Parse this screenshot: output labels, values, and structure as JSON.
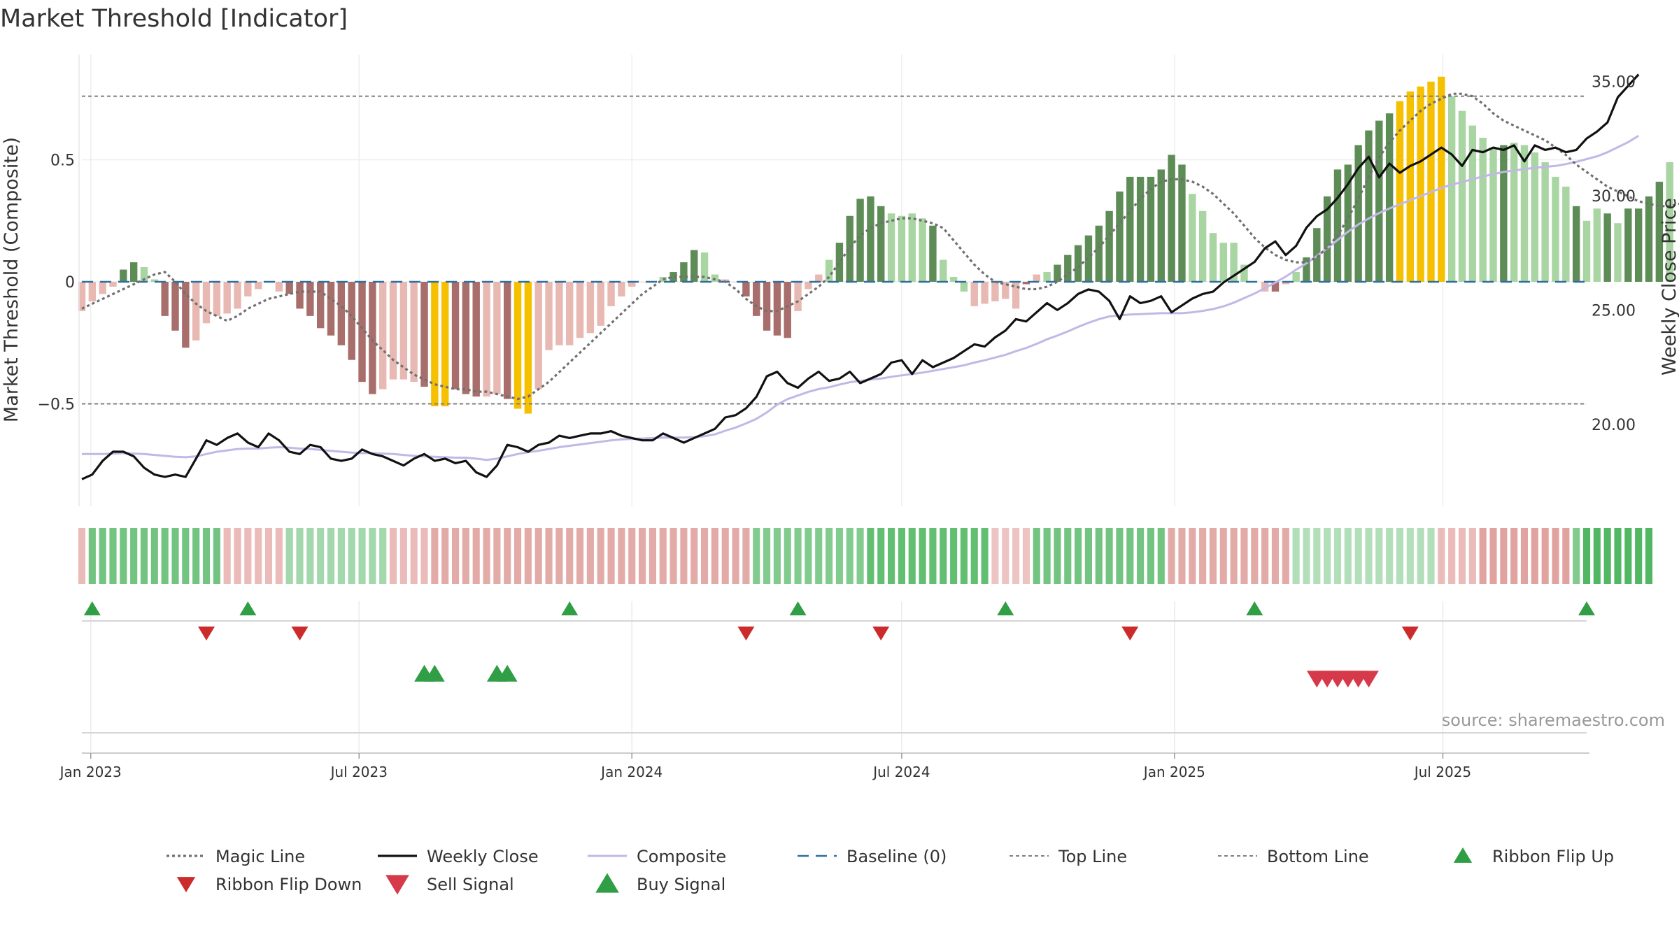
{
  "chart_data": {
    "type": "bar",
    "title": "Market Threshold [Indicator]",
    "ylabel_left": "Market Threshold (Composite)",
    "ylabel_right": "Weekly Close Price",
    "ylim_left": [
      -0.9,
      0.93
    ],
    "ylim_right": [
      16.3,
      36.4
    ],
    "yticks_left": [
      {
        "v": 0.5,
        "label": "0.5"
      },
      {
        "v": 0,
        "label": "0"
      },
      {
        "v": -0.5,
        "label": "−0.5"
      }
    ],
    "yticks_right": [
      {
        "v": 35,
        "label": "35.00"
      },
      {
        "v": 30,
        "label": "30.00"
      },
      {
        "v": 25,
        "label": "25.00"
      },
      {
        "v": 20,
        "label": "20.00"
      }
    ],
    "x_start": "2022-12-26",
    "x_end": "2025-10-06",
    "xticks": [
      {
        "date": "2023-01-01",
        "label": "Jan 2023"
      },
      {
        "date": "2023-07-01",
        "label": "Jul 2023"
      },
      {
        "date": "2024-01-01",
        "label": "Jan 2024"
      },
      {
        "date": "2024-07-01",
        "label": "Jul 2024"
      },
      {
        "date": "2025-01-01",
        "label": "Jan 2025"
      },
      {
        "date": "2025-07-01",
        "label": "Jul 2025"
      }
    ],
    "top_line": 0.76,
    "bottom_line": -0.5,
    "baseline": 0,
    "composite": [
      -0.12,
      -0.08,
      -0.05,
      -0.02,
      0.05,
      0.08,
      0.06,
      0.01,
      -0.14,
      -0.2,
      -0.27,
      -0.24,
      -0.17,
      -0.14,
      -0.13,
      -0.11,
      -0.06,
      -0.03,
      0.0,
      -0.04,
      -0.05,
      -0.11,
      -0.14,
      -0.19,
      -0.22,
      -0.26,
      -0.32,
      -0.41,
      -0.46,
      -0.44,
      -0.4,
      -0.4,
      -0.41,
      -0.43,
      -0.51,
      -0.51,
      -0.44,
      -0.46,
      -0.47,
      -0.47,
      -0.46,
      -0.48,
      -0.52,
      -0.54,
      -0.44,
      -0.28,
      -0.26,
      -0.26,
      -0.23,
      -0.21,
      -0.18,
      -0.1,
      -0.06,
      -0.02,
      0.0,
      0.0,
      0.02,
      0.04,
      0.08,
      0.13,
      0.12,
      0.03,
      0.01,
      0.0,
      -0.06,
      -0.14,
      -0.2,
      -0.22,
      -0.23,
      -0.12,
      -0.03,
      0.03,
      0.09,
      0.16,
      0.27,
      0.34,
      0.35,
      0.31,
      0.28,
      0.27,
      0.28,
      0.26,
      0.23,
      0.09,
      0.02,
      -0.04,
      -0.1,
      -0.09,
      -0.08,
      -0.07,
      -0.11,
      -0.01,
      0.03,
      0.04,
      0.07,
      0.11,
      0.15,
      0.19,
      0.23,
      0.29,
      0.37,
      0.43,
      0.43,
      0.43,
      0.46,
      0.52,
      0.48,
      0.36,
      0.29,
      0.2,
      0.16,
      0.16,
      0.07,
      0.0,
      -0.04,
      -0.04,
      -0.01,
      0.04,
      0.1,
      0.22,
      0.35,
      0.46,
      0.48,
      0.56,
      0.62,
      0.66,
      0.69,
      0.74,
      0.78,
      0.8,
      0.82,
      0.84,
      0.76,
      0.7,
      0.64,
      0.59,
      0.55,
      0.56,
      0.57,
      0.56,
      0.53,
      0.49,
      0.43,
      0.39,
      0.31,
      0.25,
      0.3,
      0.28,
      0.24,
      0.3,
      0.3,
      0.35,
      0.41,
      0.49
    ],
    "bar_states": [
      "lr",
      "lr",
      "lr",
      "lr",
      "dg",
      "dg",
      "lg",
      "lg",
      "dr",
      "dr",
      "dr",
      "lr",
      "lr",
      "lr",
      "lr",
      "lr",
      "lr",
      "lr",
      "lr",
      "lr",
      "dr",
      "dr",
      "dr",
      "dr",
      "dr",
      "dr",
      "dr",
      "dr",
      "dr",
      "lr",
      "lr",
      "lr",
      "lr",
      "dr",
      "y",
      "y",
      "dr",
      "dr",
      "dr",
      "lr",
      "lr",
      "dr",
      "y",
      "y",
      "lr",
      "lr",
      "lr",
      "lr",
      "lr",
      "lr",
      "lr",
      "lr",
      "lr",
      "lr",
      "lr",
      "lr",
      "lg",
      "dg",
      "dg",
      "dg",
      "lg",
      "lg",
      "lr",
      "lr",
      "dr",
      "dr",
      "dr",
      "dr",
      "dr",
      "lr",
      "lr",
      "lr",
      "lg",
      "dg",
      "dg",
      "dg",
      "dg",
      "dg",
      "lg",
      "lg",
      "lg",
      "lg",
      "dg",
      "lg",
      "lg",
      "lg",
      "lr",
      "lr",
      "lr",
      "lr",
      "lr",
      "dr",
      "lr",
      "lg",
      "dg",
      "dg",
      "dg",
      "dg",
      "dg",
      "dg",
      "dg",
      "dg",
      "dg",
      "dg",
      "dg",
      "dg",
      "dg",
      "lg",
      "lg",
      "lg",
      "lg",
      "lg",
      "lg",
      "lr",
      "lr",
      "dr",
      "lr",
      "lg",
      "dg",
      "dg",
      "dg",
      "dg",
      "dg",
      "dg",
      "dg",
      "dg",
      "dg",
      "y",
      "y",
      "y",
      "y",
      "y",
      "lg",
      "lg",
      "lg",
      "lg",
      "lg",
      "dg",
      "lg",
      "lg",
      "lg",
      "lg",
      "lg",
      "lg",
      "dg",
      "lg",
      "lg",
      "dg",
      "lg",
      "dg",
      "dg",
      "dg",
      "dg"
    ],
    "magic_line": [
      -0.11,
      -0.09,
      -0.07,
      -0.05,
      -0.03,
      -0.01,
      0.01,
      0.03,
      0.04,
      0.0,
      -0.05,
      -0.09,
      -0.12,
      -0.14,
      -0.16,
      -0.14,
      -0.11,
      -0.09,
      -0.07,
      -0.06,
      -0.05,
      -0.04,
      -0.04,
      -0.04,
      -0.07,
      -0.1,
      -0.14,
      -0.19,
      -0.24,
      -0.28,
      -0.32,
      -0.35,
      -0.38,
      -0.4,
      -0.42,
      -0.43,
      -0.44,
      -0.44,
      -0.45,
      -0.45,
      -0.46,
      -0.47,
      -0.48,
      -0.47,
      -0.44,
      -0.41,
      -0.37,
      -0.33,
      -0.29,
      -0.25,
      -0.21,
      -0.17,
      -0.13,
      -0.09,
      -0.05,
      -0.02,
      0.01,
      0.02,
      0.02,
      0.02,
      0.02,
      0.01,
      0.0,
      -0.03,
      -0.07,
      -0.1,
      -0.12,
      -0.12,
      -0.1,
      -0.08,
      -0.05,
      -0.02,
      0.02,
      0.08,
      0.14,
      0.19,
      0.22,
      0.24,
      0.25,
      0.26,
      0.26,
      0.25,
      0.24,
      0.22,
      0.17,
      0.12,
      0.07,
      0.03,
      0.0,
      -0.01,
      -0.02,
      -0.03,
      -0.03,
      -0.02,
      0.0,
      0.03,
      0.06,
      0.1,
      0.14,
      0.19,
      0.24,
      0.29,
      0.34,
      0.38,
      0.41,
      0.42,
      0.42,
      0.41,
      0.39,
      0.36,
      0.32,
      0.28,
      0.23,
      0.18,
      0.14,
      0.11,
      0.09,
      0.08,
      0.08,
      0.1,
      0.14,
      0.19,
      0.26,
      0.34,
      0.43,
      0.51,
      0.57,
      0.62,
      0.66,
      0.7,
      0.73,
      0.75,
      0.77,
      0.77,
      0.76,
      0.73,
      0.69,
      0.66,
      0.64,
      0.62,
      0.6,
      0.58,
      0.55,
      0.52,
      0.48,
      0.45,
      0.42,
      0.39,
      0.37,
      0.35,
      0.33,
      0.32,
      0.31,
      0.31,
      0.32,
      0.34
    ],
    "weekly_close": [
      17.6,
      17.8,
      18.4,
      18.8,
      18.8,
      18.6,
      18.1,
      17.8,
      17.7,
      17.8,
      17.7,
      18.5,
      19.3,
      19.1,
      19.4,
      19.6,
      19.2,
      19.0,
      19.6,
      19.3,
      18.8,
      18.7,
      19.1,
      19.0,
      18.5,
      18.4,
      18.5,
      18.9,
      18.7,
      18.6,
      18.4,
      18.2,
      18.5,
      18.7,
      18.4,
      18.5,
      18.3,
      18.4,
      17.9,
      17.7,
      18.2,
      19.1,
      19.0,
      18.8,
      19.1,
      19.2,
      19.5,
      19.4,
      19.5,
      19.6,
      19.6,
      19.7,
      19.5,
      19.4,
      19.3,
      19.3,
      19.6,
      19.4,
      19.2,
      19.4,
      19.6,
      19.8,
      20.3,
      20.4,
      20.7,
      21.2,
      22.1,
      22.3,
      21.8,
      21.6,
      22.0,
      22.3,
      21.9,
      22.0,
      22.3,
      21.8,
      22.0,
      22.2,
      22.7,
      22.8,
      22.2,
      22.8,
      22.5,
      22.7,
      22.9,
      23.2,
      23.5,
      23.4,
      23.8,
      24.1,
      24.6,
      24.5,
      24.9,
      25.3,
      25.0,
      25.3,
      25.7,
      25.9,
      25.8,
      25.4,
      24.6,
      25.6,
      25.3,
      25.4,
      25.6,
      24.9,
      25.2,
      25.5,
      25.7,
      25.8,
      26.2,
      26.5,
      26.8,
      27.1,
      27.7,
      28.0,
      27.4,
      27.8,
      28.6,
      29.1,
      29.4,
      29.9,
      30.5,
      31.2,
      31.7,
      30.8,
      31.4,
      31.0,
      31.3,
      31.5,
      31.8,
      32.1,
      31.8,
      31.3,
      32.0,
      31.9,
      32.1,
      32.0,
      32.2,
      31.5,
      32.2,
      32.0,
      32.1,
      31.9,
      32.0,
      32.5,
      32.8,
      33.2,
      34.3,
      34.8,
      35.3
    ],
    "price_ma": [
      18.7,
      18.7,
      18.7,
      18.72,
      18.74,
      18.72,
      18.7,
      18.66,
      18.62,
      18.58,
      18.56,
      18.6,
      18.7,
      18.8,
      18.86,
      18.92,
      18.94,
      18.94,
      18.98,
      19.0,
      18.98,
      18.94,
      18.92,
      18.88,
      18.84,
      18.8,
      18.76,
      18.74,
      18.74,
      18.72,
      18.7,
      18.66,
      18.62,
      18.6,
      18.58,
      18.56,
      18.54,
      18.54,
      18.5,
      18.44,
      18.5,
      18.6,
      18.7,
      18.78,
      18.84,
      18.92,
      19.0,
      19.06,
      19.12,
      19.18,
      19.24,
      19.3,
      19.34,
      19.36,
      19.38,
      19.4,
      19.42,
      19.42,
      19.42,
      19.44,
      19.48,
      19.56,
      19.72,
      19.86,
      20.04,
      20.24,
      20.52,
      20.86,
      21.1,
      21.26,
      21.42,
      21.54,
      21.62,
      21.74,
      21.84,
      21.9,
      21.96,
      22.0,
      22.08,
      22.14,
      22.2,
      22.26,
      22.34,
      22.42,
      22.5,
      22.58,
      22.7,
      22.8,
      22.92,
      23.04,
      23.2,
      23.34,
      23.52,
      23.72,
      23.88,
      24.06,
      24.26,
      24.44,
      24.6,
      24.72,
      24.76,
      24.8,
      24.82,
      24.84,
      24.86,
      24.86,
      24.86,
      24.9,
      24.96,
      25.04,
      25.16,
      25.32,
      25.52,
      25.72,
      25.96,
      26.2,
      26.46,
      26.76,
      27.04,
      27.36,
      27.7,
      28.06,
      28.42,
      28.74,
      29.0,
      29.24,
      29.44,
      29.62,
      29.8,
      29.98,
      30.16,
      30.34,
      30.48,
      30.6,
      30.72,
      30.84,
      30.94,
      31.04,
      31.1,
      31.16,
      31.22,
      31.26,
      31.3,
      31.38,
      31.48,
      31.6,
      31.72,
      31.9,
      32.12,
      32.34,
      32.62
    ],
    "ribbon": [
      -0.3,
      0.6,
      0.6,
      0.6,
      0.6,
      0.6,
      0.6,
      0.6,
      0.6,
      0.6,
      0.6,
      0.6,
      0.6,
      0.6,
      -0.3,
      -0.3,
      -0.3,
      -0.3,
      -0.3,
      -0.3,
      0.3,
      0.3,
      0.3,
      0.3,
      0.3,
      0.3,
      0.3,
      0.3,
      0.3,
      0.3,
      -0.3,
      -0.3,
      -0.3,
      -0.3,
      -0.5,
      -0.5,
      -0.5,
      -0.5,
      -0.5,
      -0.5,
      -0.5,
      -0.5,
      -0.5,
      -0.5,
      -0.5,
      -0.5,
      -0.5,
      -0.5,
      -0.5,
      -0.5,
      -0.5,
      -0.5,
      -0.5,
      -0.5,
      -0.5,
      -0.5,
      -0.5,
      -0.5,
      -0.5,
      -0.5,
      -0.5,
      -0.5,
      -0.5,
      -0.5,
      -0.5,
      0.5,
      0.5,
      0.5,
      0.5,
      0.5,
      0.5,
      0.5,
      0.5,
      0.5,
      0.5,
      0.5,
      0.7,
      0.7,
      0.7,
      0.7,
      0.7,
      0.7,
      0.7,
      0.7,
      0.7,
      0.7,
      0.7,
      0.7,
      -0.2,
      -0.2,
      -0.2,
      -0.2,
      0.6,
      0.6,
      0.6,
      0.6,
      0.6,
      0.6,
      0.6,
      0.6,
      0.6,
      0.6,
      0.6,
      0.6,
      0.6,
      -0.5,
      -0.5,
      -0.5,
      -0.5,
      -0.5,
      -0.5,
      -0.5,
      -0.5,
      -0.5,
      -0.5,
      -0.5,
      -0.5,
      0.2,
      0.2,
      0.2,
      0.2,
      0.2,
      0.2,
      0.2,
      0.2,
      0.2,
      0.2,
      0.2,
      0.2,
      0.2,
      0.2,
      -0.3,
      -0.3,
      -0.3,
      -0.3,
      -0.6,
      -0.6,
      -0.6,
      -0.6,
      -0.6,
      -0.6,
      -0.6,
      -0.6,
      -0.6,
      0.5,
      0.8,
      0.8,
      0.8,
      0.8,
      0.8,
      0.8,
      0.8
    ],
    "ribbon_flip_up": [
      "2023-01-02",
      "2023-04-17",
      "2023-11-20",
      "2024-04-22",
      "2024-09-09",
      "2025-02-24",
      "2025-10-06"
    ],
    "ribbon_flip_down": [
      "2023-03-20",
      "2023-05-22",
      "2024-03-18",
      "2024-06-17",
      "2024-12-02",
      "2025-06-09"
    ],
    "buy_signal": [
      "2023-08-14",
      "2023-08-21",
      "2023-10-02",
      "2023-10-09"
    ],
    "sell_signal": [
      "2025-04-07",
      "2025-04-14",
      "2025-04-21",
      "2025-04-28",
      "2025-05-05",
      "2025-05-12"
    ],
    "colors": {
      "dark_green": "#5e8c57",
      "light_green": "#a8d5a2",
      "dark_red": "#a76e6b",
      "light_red": "#e8b9b3",
      "yellow": "#f5c000",
      "magic_line": "#707070",
      "weekly_close": "#111111",
      "composite": "#c1b8e6",
      "baseline": "#2e6f9e",
      "threshold_lines": "#808080",
      "flip_up": "#2f9e44",
      "flip_down": "#cc2b2b",
      "sell": "#d63a4a",
      "buy": "#2f9e44"
    },
    "legend": [
      {
        "key": "magic",
        "label": "Magic Line"
      },
      {
        "key": "close",
        "label": "Weekly Close"
      },
      {
        "key": "composite",
        "label": "Composite"
      },
      {
        "key": "baseline",
        "label": "Baseline (0)"
      },
      {
        "key": "top",
        "label": "Top Line"
      },
      {
        "key": "bottom",
        "label": "Bottom Line"
      },
      {
        "key": "flipup",
        "label": "Ribbon Flip Up"
      },
      {
        "key": "flipdown",
        "label": "Ribbon Flip Down"
      },
      {
        "key": "sell",
        "label": "Sell Signal"
      },
      {
        "key": "buy",
        "label": "Buy Signal"
      }
    ],
    "source": "source: sharemaestro.com"
  }
}
